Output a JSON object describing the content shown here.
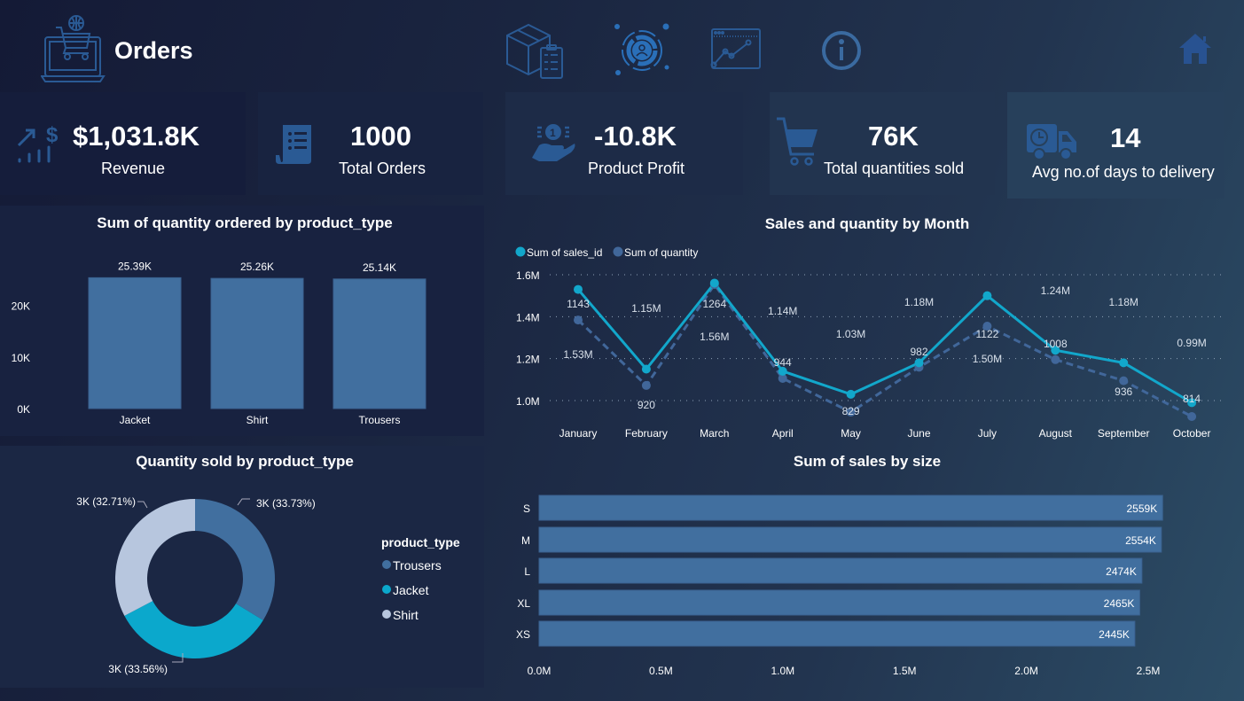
{
  "header": {
    "title": "Orders",
    "icons": [
      "laptop-cart-icon",
      "package-checklist-icon",
      "customer-analytics-icon",
      "line-chart-icon",
      "info-icon",
      "home-icon"
    ]
  },
  "kpis": [
    {
      "value": "$1,031.8K",
      "label": "Revenue",
      "icon": "revenue-growth-icon"
    },
    {
      "value": "1000",
      "label": "Total Orders",
      "icon": "receipt-icon"
    },
    {
      "value": "-10.8K",
      "label": "Product Profit",
      "icon": "coin-hand-icon"
    },
    {
      "value": "76K",
      "label": "Total quantities sold",
      "icon": "shopping-cart-icon"
    },
    {
      "value": "14",
      "label": "Avg no.of days to  delivery",
      "icon": "delivery-truck-icon"
    }
  ],
  "colors": {
    "bar": "#416f9f",
    "sales_line": "#12a7cb",
    "quantity_line": "#41679a",
    "jacket": "#0ba8cc",
    "trousers": "#416f9f",
    "shirt": "#b7c6de",
    "icon": "#2a5a94"
  },
  "chart_data": [
    {
      "type": "bar",
      "title": "Sum of quantity ordered by product_type",
      "categories": [
        "Jacket",
        "Shirt",
        "Trousers"
      ],
      "values": [
        25390,
        25260,
        25140
      ],
      "data_labels": [
        "25.39K",
        "25.26K",
        "25.14K"
      ],
      "yticks": [
        0,
        10000,
        20000
      ],
      "ytick_labels": [
        "0K",
        "10K",
        "20K"
      ],
      "ylim": [
        0,
        27000
      ],
      "grid": false
    },
    {
      "type": "line",
      "title": "Sales and quantity by Month",
      "categories": [
        "January",
        "February",
        "March",
        "April",
        "May",
        "June",
        "July",
        "August",
        "September",
        "October"
      ],
      "legend": "top-left",
      "series": [
        {
          "name": "Sum of sales_id",
          "values": [
            1.53,
            1.15,
            1.56,
            1.14,
            1.03,
            1.18,
            1.5,
            1.24,
            1.18,
            0.99
          ],
          "labels": [
            "1.53M",
            "1.15M",
            "1.56M",
            "1.14M",
            "1.03M",
            "1.18M",
            "1.50M",
            "1.24M",
            "1.18M",
            "0.99M"
          ],
          "unit": "M",
          "style": "solid"
        },
        {
          "name": "Sum of quantity",
          "values": [
            1143,
            920,
            1264,
            944,
            829,
            982,
            1122,
            1008,
            936,
            814
          ],
          "labels": [
            "1143",
            "920",
            "1264",
            "944",
            "829",
            "982",
            "1122",
            "1008",
            "936",
            "814"
          ],
          "style": "dashed",
          "axis": "secondary"
        }
      ],
      "yticks": [
        1.0,
        1.2,
        1.4,
        1.6
      ],
      "ytick_labels": [
        "1.0M",
        "1.2M",
        "1.4M",
        "1.6M"
      ],
      "ylim": [
        0.93,
        1.6
      ],
      "y2lim": [
        770,
        1300
      ],
      "grid": true
    },
    {
      "type": "pie",
      "title": "Quantity sold by product_type",
      "legend_title": "product_type",
      "legend": "right",
      "slices": [
        {
          "name": "Trousers",
          "percent": 33.73,
          "label": "3K (33.73%)"
        },
        {
          "name": "Jacket",
          "percent": 33.56,
          "label": "3K (33.56%)"
        },
        {
          "name": "Shirt",
          "percent": 32.71,
          "label": "3K (32.71%)"
        }
      ]
    },
    {
      "type": "bar",
      "orientation": "horizontal",
      "title": "Sum of sales by size",
      "categories": [
        "S",
        "M",
        "L",
        "XL",
        "XS"
      ],
      "values": [
        2559,
        2554,
        2474,
        2465,
        2445
      ],
      "data_labels": [
        "2559K",
        "2554K",
        "2474K",
        "2465K",
        "2445K"
      ],
      "xticks": [
        0,
        500,
        1000,
        1500,
        2000,
        2500
      ],
      "xtick_labels": [
        "0.0M",
        "0.5M",
        "1.0M",
        "1.5M",
        "2.0M",
        "2.5M"
      ],
      "xlim": [
        0,
        2500
      ],
      "grid": false
    }
  ]
}
